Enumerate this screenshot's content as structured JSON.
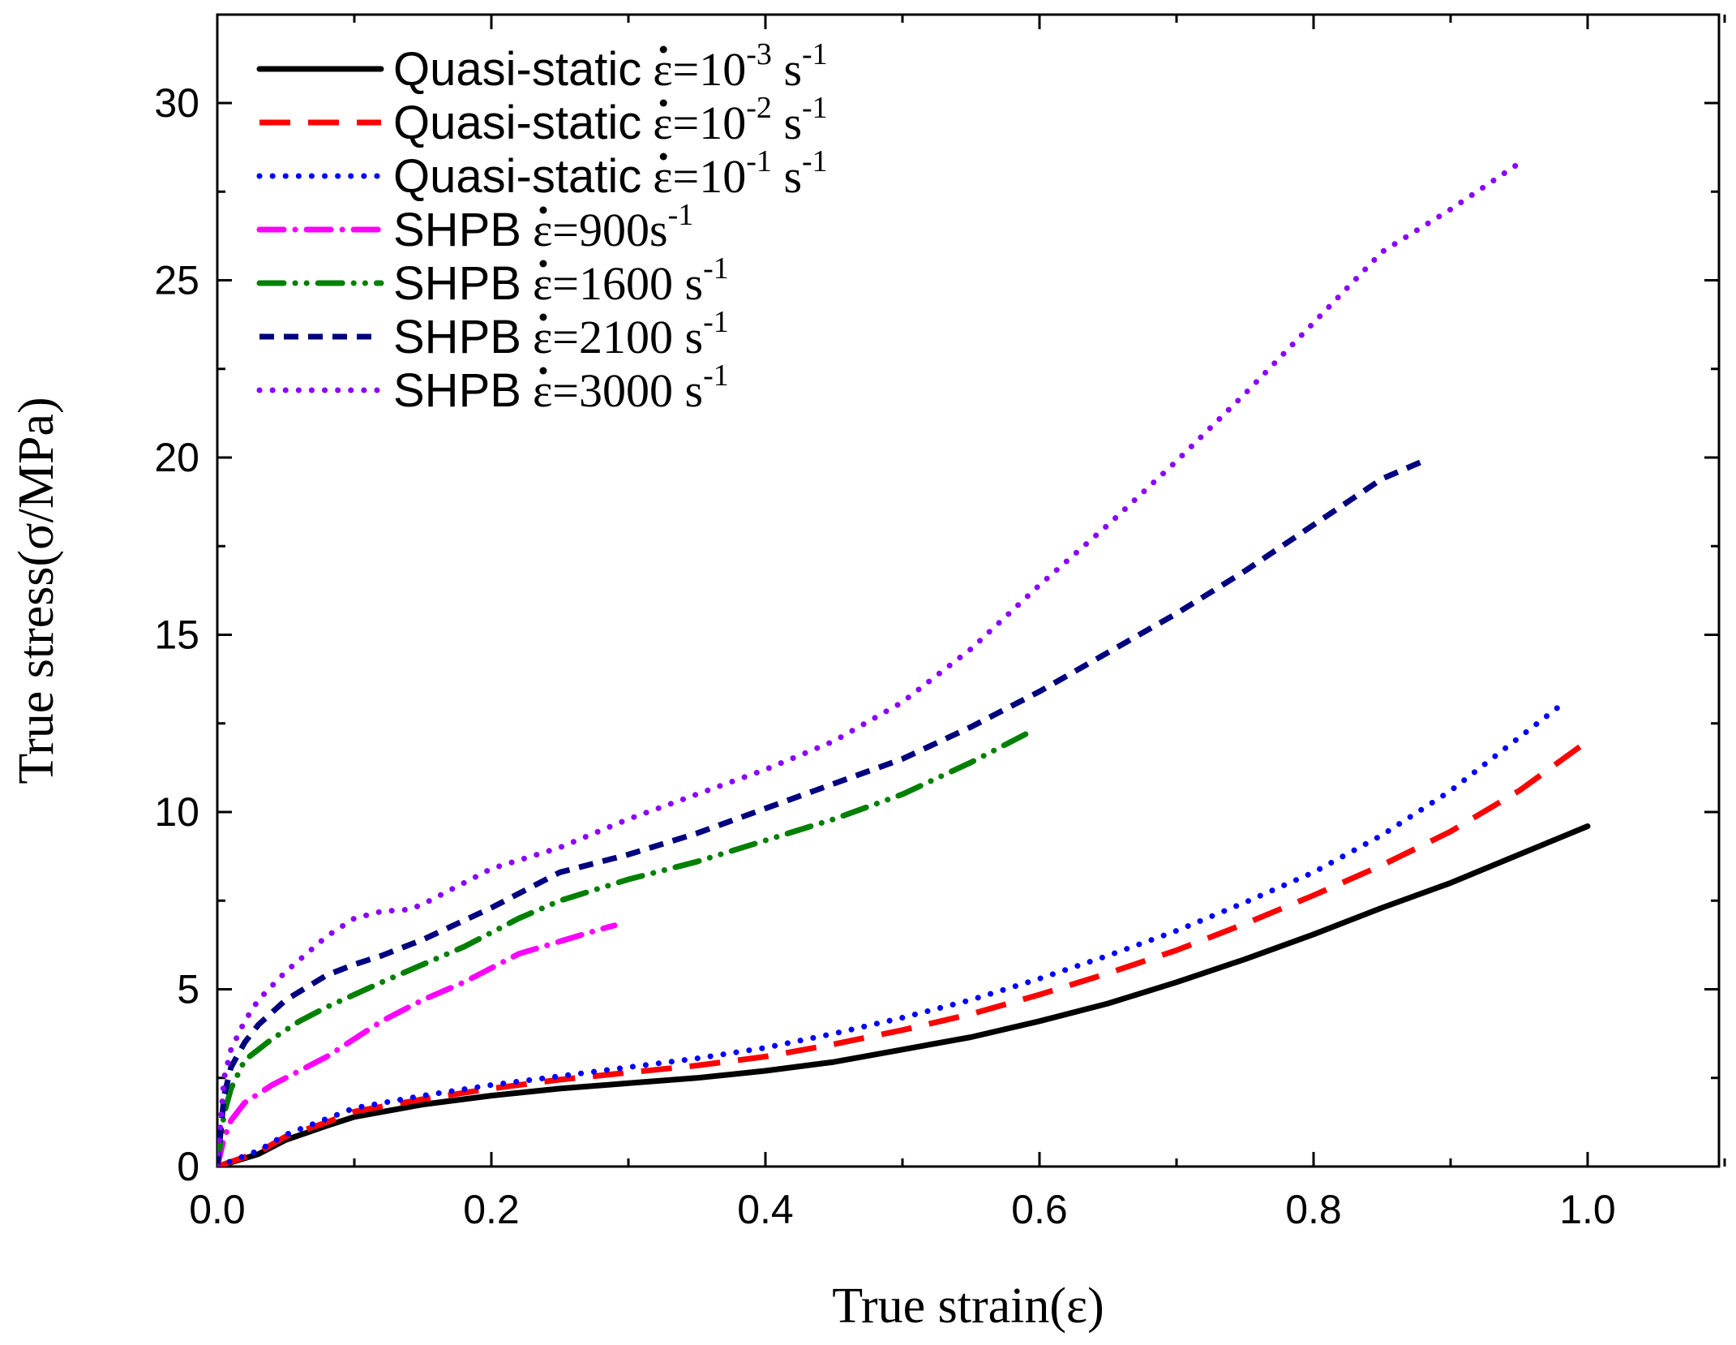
{
  "chart_data": {
    "type": "line",
    "title": "",
    "xlabel": "True strain(ε)",
    "ylabel": "True stress(σ/MPa)",
    "xlim": [
      0,
      1.1
    ],
    "ylim": [
      0,
      32.5
    ],
    "xticks": [
      {
        "value": 0.0,
        "label": "0.0"
      },
      {
        "value": 0.2,
        "label": "0.2"
      },
      {
        "value": 0.4,
        "label": "0.4"
      },
      {
        "value": 0.6,
        "label": "0.6"
      },
      {
        "value": 0.8,
        "label": "0.8"
      },
      {
        "value": 1.0,
        "label": "1.0"
      }
    ],
    "yticks": [
      {
        "value": 0,
        "label": "0"
      },
      {
        "value": 5,
        "label": "5"
      },
      {
        "value": 10,
        "label": "10"
      },
      {
        "value": 15,
        "label": "15"
      },
      {
        "value": 20,
        "label": "20"
      },
      {
        "value": 25,
        "label": "25"
      },
      {
        "value": 30,
        "label": "30"
      }
    ],
    "legend_position": "top-left",
    "series": [
      {
        "key": "qs-1e-3",
        "legend": {
          "name": "Quasi-static",
          "rate": "ε=10",
          "exp": "-3",
          "suffix": " s",
          "suffix_exp": "-1"
        },
        "color": "#000000",
        "style": "solid",
        "x": [
          0,
          0.03,
          0.05,
          0.08,
          0.1,
          0.15,
          0.2,
          0.25,
          0.3,
          0.35,
          0.4,
          0.45,
          0.5,
          0.55,
          0.6,
          0.65,
          0.7,
          0.75,
          0.8,
          0.85,
          0.9,
          0.95,
          1.0
        ],
        "y": [
          0,
          0.35,
          0.75,
          1.15,
          1.4,
          1.75,
          2.0,
          2.2,
          2.35,
          2.5,
          2.7,
          2.95,
          3.3,
          3.65,
          4.1,
          4.6,
          5.2,
          5.85,
          6.55,
          7.3,
          8.0,
          8.8,
          9.6
        ]
      },
      {
        "key": "qs-1e-2",
        "legend": {
          "name": "Quasi-static",
          "rate": "ε=10",
          "exp": "-2",
          "suffix": " s",
          "suffix_exp": "-1"
        },
        "color": "#ff0000",
        "style": "dash",
        "x": [
          0,
          0.03,
          0.05,
          0.08,
          0.1,
          0.15,
          0.2,
          0.25,
          0.3,
          0.35,
          0.4,
          0.45,
          0.5,
          0.55,
          0.6,
          0.65,
          0.7,
          0.75,
          0.8,
          0.85,
          0.9,
          0.95,
          1.0
        ],
        "y": [
          0,
          0.4,
          0.85,
          1.25,
          1.55,
          1.9,
          2.2,
          2.45,
          2.65,
          2.85,
          3.1,
          3.45,
          3.85,
          4.3,
          4.85,
          5.45,
          6.1,
          6.85,
          7.65,
          8.5,
          9.45,
          10.6,
          12.0
        ]
      },
      {
        "key": "qs-1e-1",
        "legend": {
          "name": "Quasi-static",
          "rate": "ε=10",
          "exp": "-1",
          "suffix": " s",
          "suffix_exp": "-1"
        },
        "color": "#0000ff",
        "style": "dot",
        "x": [
          0,
          0.03,
          0.05,
          0.08,
          0.1,
          0.15,
          0.2,
          0.25,
          0.3,
          0.35,
          0.4,
          0.45,
          0.5,
          0.55,
          0.6,
          0.65,
          0.7,
          0.75,
          0.8,
          0.85,
          0.9,
          0.95,
          0.98
        ],
        "y": [
          0,
          0.45,
          0.9,
          1.35,
          1.65,
          2.0,
          2.3,
          2.55,
          2.8,
          3.05,
          3.35,
          3.75,
          4.2,
          4.7,
          5.3,
          5.95,
          6.65,
          7.45,
          8.3,
          9.35,
          10.6,
          12.1,
          13.0
        ]
      },
      {
        "key": "shpb-900",
        "legend": {
          "name": "SHPB",
          "rate": "ε=900s",
          "exp": "-1",
          "suffix": "",
          "suffix_exp": ""
        },
        "color": "#ff00ff",
        "style": "dashdot",
        "x": [
          0,
          0.005,
          0.01,
          0.02,
          0.04,
          0.06,
          0.08,
          0.1,
          0.12,
          0.15,
          0.18,
          0.2,
          0.22,
          0.25,
          0.28,
          0.29
        ],
        "y": [
          0,
          0.8,
          1.3,
          1.8,
          2.3,
          2.7,
          3.1,
          3.6,
          4.1,
          4.7,
          5.2,
          5.6,
          6.0,
          6.35,
          6.7,
          6.8
        ]
      },
      {
        "key": "shpb-1600",
        "legend": {
          "name": "SHPB",
          "rate": "ε=1600 s",
          "exp": "-1",
          "suffix": "",
          "suffix_exp": ""
        },
        "color": "#008000",
        "style": "dashdotdot",
        "x": [
          0,
          0.005,
          0.01,
          0.02,
          0.04,
          0.06,
          0.08,
          0.1,
          0.12,
          0.15,
          0.18,
          0.2,
          0.22,
          0.25,
          0.3,
          0.35,
          0.4,
          0.45,
          0.5,
          0.55,
          0.59
        ],
        "y": [
          0,
          1.5,
          2.2,
          3.0,
          3.6,
          4.1,
          4.5,
          4.85,
          5.2,
          5.7,
          6.2,
          6.6,
          7.0,
          7.5,
          8.1,
          8.6,
          9.2,
          9.8,
          10.5,
          11.4,
          12.2
        ]
      },
      {
        "key": "shpb-2100",
        "legend": {
          "name": "SHPB",
          "rate": "ε=2100 s",
          "exp": "-1",
          "suffix": "",
          "suffix_exp": ""
        },
        "color": "#000080",
        "style": "shortdash",
        "x": [
          0,
          0.005,
          0.01,
          0.02,
          0.03,
          0.05,
          0.08,
          0.1,
          0.12,
          0.15,
          0.2,
          0.22,
          0.25,
          0.3,
          0.35,
          0.4,
          0.45,
          0.5,
          0.55,
          0.6,
          0.65,
          0.7,
          0.75,
          0.8,
          0.85,
          0.88
        ],
        "y": [
          0,
          2.0,
          2.8,
          3.5,
          4.0,
          4.7,
          5.4,
          5.7,
          5.95,
          6.4,
          7.3,
          7.7,
          8.3,
          8.8,
          9.4,
          10.1,
          10.8,
          11.5,
          12.4,
          13.4,
          14.5,
          15.6,
          16.8,
          18.1,
          19.4,
          19.9
        ]
      },
      {
        "key": "shpb-3000",
        "legend": {
          "name": "SHPB",
          "rate": "ε=3000 s",
          "exp": "-1",
          "suffix": "",
          "suffix_exp": ""
        },
        "color": "#8b00ff",
        "style": "dot",
        "x": [
          0,
          0.005,
          0.01,
          0.02,
          0.03,
          0.05,
          0.08,
          0.1,
          0.12,
          0.14,
          0.15,
          0.18,
          0.2,
          0.25,
          0.3,
          0.35,
          0.4,
          0.45,
          0.5,
          0.55,
          0.6,
          0.65,
          0.7,
          0.75,
          0.8,
          0.85,
          0.9,
          0.95
        ],
        "y": [
          0,
          2.5,
          3.3,
          4.1,
          4.7,
          5.5,
          6.5,
          7.0,
          7.2,
          7.25,
          7.4,
          8.0,
          8.4,
          9.0,
          9.8,
          10.5,
          11.2,
          12.0,
          13.1,
          14.6,
          16.4,
          18.1,
          19.9,
          21.8,
          23.8,
          25.8,
          27.0,
          28.3
        ]
      }
    ]
  }
}
